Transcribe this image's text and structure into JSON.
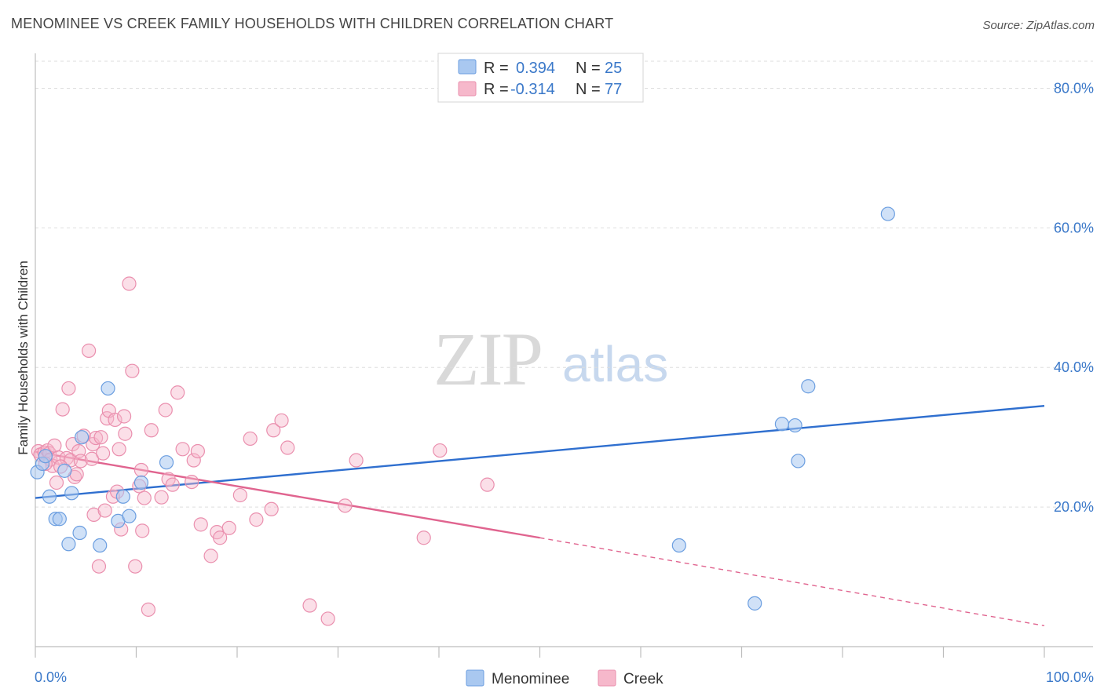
{
  "header": {
    "title": "MENOMINEE VS CREEK FAMILY HOUSEHOLDS WITH CHILDREN CORRELATION CHART",
    "source": "Source: ZipAtlas.com"
  },
  "watermark": {
    "zip": "ZIP",
    "atlas": "atlas"
  },
  "colors": {
    "menominee_fill": "#a9c8f0",
    "menominee_stroke": "#6b9ee0",
    "menominee_line": "#2f6fcf",
    "creek_fill": "#f6b8cb",
    "creek_stroke": "#ea8fae",
    "creek_line": "#e0648f",
    "axis_label": "#3a78c9"
  },
  "legend": {
    "rows": [
      {
        "r_label": "R =",
        "r_value": "0.394",
        "n_label": "N =",
        "n_value": "25"
      },
      {
        "r_label": "R =",
        "r_value": "-0.314",
        "n_label": "N =",
        "n_value": "77"
      }
    ]
  },
  "chart_data": {
    "type": "scatter",
    "title": "MENOMINEE VS CREEK FAMILY HOUSEHOLDS WITH CHILDREN CORRELATION CHART",
    "xlabel": "",
    "ylabel": "Family Households with Children",
    "xlim": [
      0,
      100
    ],
    "ylim": [
      0,
      85
    ],
    "x_tick_labels": [
      "0.0%",
      "100.0%"
    ],
    "y_ticks": [
      20,
      40,
      60,
      80
    ],
    "y_tick_labels": [
      "20.0%",
      "40.0%",
      "60.0%",
      "80.0%"
    ],
    "grid": true,
    "series": [
      {
        "name": "Menominee",
        "r": 0.394,
        "n": 25,
        "points": [
          [
            0.2,
            25.0
          ],
          [
            0.7,
            26.2
          ],
          [
            1.0,
            27.3
          ],
          [
            1.4,
            21.5
          ],
          [
            2.0,
            18.3
          ],
          [
            2.4,
            18.3
          ],
          [
            2.9,
            25.2
          ],
          [
            3.3,
            14.7
          ],
          [
            3.6,
            22.0
          ],
          [
            4.4,
            16.3
          ],
          [
            4.6,
            30.0
          ],
          [
            6.4,
            14.5
          ],
          [
            7.2,
            37.0
          ],
          [
            8.2,
            18.0
          ],
          [
            8.7,
            21.5
          ],
          [
            9.3,
            18.7
          ],
          [
            10.5,
            23.5
          ],
          [
            13.0,
            26.4
          ],
          [
            84.5,
            62.0
          ],
          [
            76.6,
            37.3
          ],
          [
            74.0,
            31.9
          ],
          [
            75.3,
            31.7
          ],
          [
            75.6,
            26.6
          ],
          [
            63.8,
            14.5
          ],
          [
            71.3,
            6.2
          ]
        ],
        "trend": {
          "x0": 0,
          "y0": 21.3,
          "x1": 100,
          "y1": 34.5
        }
      },
      {
        "name": "Creek",
        "r": -0.314,
        "n": 77,
        "points": [
          [
            0.3,
            28.0
          ],
          [
            0.5,
            27.5
          ],
          [
            0.9,
            27.8
          ],
          [
            1.2,
            28.1
          ],
          [
            1.4,
            27.7
          ],
          [
            1.5,
            26.8
          ],
          [
            1.7,
            25.9
          ],
          [
            1.9,
            28.8
          ],
          [
            2.1,
            23.5
          ],
          [
            2.3,
            27.1
          ],
          [
            2.7,
            34.0
          ],
          [
            3.1,
            27.0
          ],
          [
            3.3,
            37.0
          ],
          [
            3.5,
            26.7
          ],
          [
            3.7,
            29.0
          ],
          [
            3.9,
            24.3
          ],
          [
            4.1,
            24.7
          ],
          [
            4.3,
            28.0
          ],
          [
            4.5,
            26.6
          ],
          [
            4.8,
            30.2
          ],
          [
            5.3,
            42.4
          ],
          [
            5.6,
            26.9
          ],
          [
            5.7,
            29.0
          ],
          [
            5.8,
            18.9
          ],
          [
            6.0,
            29.9
          ],
          [
            6.3,
            11.5
          ],
          [
            6.5,
            30.0
          ],
          [
            6.7,
            27.7
          ],
          [
            6.9,
            19.5
          ],
          [
            7.1,
            32.7
          ],
          [
            7.3,
            33.8
          ],
          [
            7.7,
            21.5
          ],
          [
            7.9,
            32.5
          ],
          [
            8.1,
            22.2
          ],
          [
            8.3,
            28.3
          ],
          [
            8.5,
            16.8
          ],
          [
            8.8,
            33.0
          ],
          [
            8.9,
            30.5
          ],
          [
            9.3,
            52.0
          ],
          [
            9.6,
            39.5
          ],
          [
            9.9,
            11.5
          ],
          [
            10.3,
            23.0
          ],
          [
            10.5,
            25.3
          ],
          [
            10.6,
            16.6
          ],
          [
            10.8,
            21.3
          ],
          [
            11.2,
            5.3
          ],
          [
            11.5,
            31.0
          ],
          [
            12.5,
            21.4
          ],
          [
            12.9,
            33.9
          ],
          [
            13.2,
            24.0
          ],
          [
            13.6,
            23.2
          ],
          [
            14.1,
            36.4
          ],
          [
            14.6,
            28.3
          ],
          [
            15.5,
            23.6
          ],
          [
            15.7,
            26.7
          ],
          [
            16.1,
            28.0
          ],
          [
            16.4,
            17.5
          ],
          [
            17.4,
            13.0
          ],
          [
            18.0,
            16.4
          ],
          [
            18.3,
            15.6
          ],
          [
            19.2,
            17.0
          ],
          [
            20.3,
            21.7
          ],
          [
            21.3,
            29.8
          ],
          [
            21.9,
            18.2
          ],
          [
            23.4,
            19.7
          ],
          [
            23.6,
            31.0
          ],
          [
            24.4,
            32.4
          ],
          [
            25.0,
            28.5
          ],
          [
            27.2,
            5.9
          ],
          [
            29.0,
            4.0
          ],
          [
            30.7,
            20.2
          ],
          [
            31.8,
            26.7
          ],
          [
            38.5,
            15.6
          ],
          [
            40.1,
            28.1
          ],
          [
            44.8,
            23.2
          ],
          [
            1.0,
            26.2
          ],
          [
            2.5,
            25.8
          ]
        ],
        "trend": {
          "x0": 0,
          "y0": 27.9,
          "x1": 50,
          "y1": 15.6
        },
        "trend_dashed": {
          "x0": 50,
          "y0": 15.6,
          "x1": 100,
          "y1": 3.0
        }
      }
    ]
  }
}
